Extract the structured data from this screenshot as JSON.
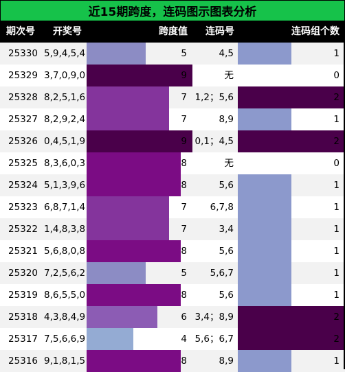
{
  "title": "近15期跨度，连码图示图表分析",
  "headers": {
    "period": "期次号",
    "numbers": "开奖号",
    "span": "跨度值",
    "lianma": "连码号",
    "count": "连码组个数"
  },
  "colors": {
    "title_bg": "#16c24a",
    "header_bg": "#000000",
    "span_4": "#94abd3",
    "span_5": "#8c8cc4",
    "span_6": "#8c5cb4",
    "span_7": "#84349c",
    "span_8": "#7b0c84",
    "span_9": "#4a004a",
    "count_0": "#ffffff",
    "count_1": "#8c99cc",
    "count_2": "#4a004a"
  },
  "rows": [
    {
      "period": "25330",
      "numbers": "5,9,4,5,4",
      "span": 5,
      "lianma": "4,5",
      "count": 1
    },
    {
      "period": "25329",
      "numbers": "3,7,0,9,0",
      "span": 9,
      "lianma": "无",
      "count": 0
    },
    {
      "period": "25328",
      "numbers": "8,2,5,1,6",
      "span": 7,
      "lianma": "1,2；5,6",
      "count": 2
    },
    {
      "period": "25327",
      "numbers": "8,2,9,2,4",
      "span": 7,
      "lianma": "8,9",
      "count": 1
    },
    {
      "period": "25326",
      "numbers": "0,4,5,1,9",
      "span": 9,
      "lianma": "0,1；4,5",
      "count": 2
    },
    {
      "period": "25325",
      "numbers": "8,3,6,0,3",
      "span": 8,
      "lianma": "无",
      "count": 0
    },
    {
      "period": "25324",
      "numbers": "5,1,3,9,6",
      "span": 8,
      "lianma": "5,6",
      "count": 1
    },
    {
      "period": "25323",
      "numbers": "6,8,7,1,4",
      "span": 7,
      "lianma": "6,7,8",
      "count": 1
    },
    {
      "period": "25322",
      "numbers": "1,4,8,3,8",
      "span": 7,
      "lianma": "3,4",
      "count": 1
    },
    {
      "period": "25321",
      "numbers": "5,6,8,0,8",
      "span": 8,
      "lianma": "5,6",
      "count": 1
    },
    {
      "period": "25320",
      "numbers": "7,2,5,6,2",
      "span": 5,
      "lianma": "5,6,7",
      "count": 1
    },
    {
      "period": "25319",
      "numbers": "8,6,5,5,0",
      "span": 8,
      "lianma": "5,6",
      "count": 1
    },
    {
      "period": "25318",
      "numbers": "4,3,8,4,9",
      "span": 6,
      "lianma": "3,4；8,9",
      "count": 2
    },
    {
      "period": "25317",
      "numbers": "7,5,6,6,9",
      "span": 4,
      "lianma": "5,6；6,7",
      "count": 2
    },
    {
      "period": "25316",
      "numbers": "9,1,8,1,5",
      "span": 8,
      "lianma": "8,9",
      "count": 1
    }
  ]
}
